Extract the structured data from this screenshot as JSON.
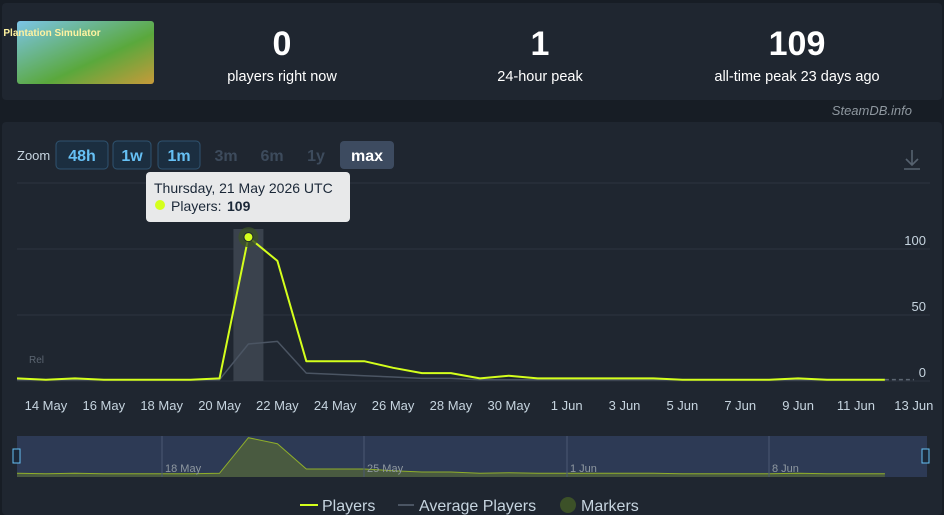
{
  "header": {
    "logo_text": "Plantation Simulator",
    "stats": [
      {
        "value": 0,
        "label": "players right now"
      },
      {
        "value": 1,
        "label": "24-hour peak"
      },
      {
        "value": 109,
        "label": "all-time peak 23 days ago"
      }
    ],
    "credit": "SteamDB.info"
  },
  "zoom": {
    "label": "Zoom",
    "buttons": [
      "48h",
      "1w",
      "1m",
      "3m",
      "6m",
      "1y",
      "max"
    ]
  },
  "tooltip": {
    "date": "Thursday, 21 May 2026 UTC",
    "label": "Players:"
  },
  "rel_label": "Rel",
  "navigator_ticks": [
    "18 May",
    "25 May",
    "1 Jun",
    "8 Jun"
  ],
  "chart_data": {
    "type": "line",
    "categories": [
      null,
      "14 May",
      null,
      "16 May",
      null,
      "18 May",
      null,
      "20 May",
      null,
      "22 May",
      null,
      "24 May",
      null,
      "26 May",
      null,
      "28 May",
      null,
      "30 May",
      null,
      "1 Jun",
      null,
      "3 Jun",
      null,
      "5 Jun",
      null,
      "7 Jun",
      null,
      "9 Jun",
      null,
      "11 Jun",
      null,
      "13 Jun"
    ],
    "series": [
      {
        "name": "Players",
        "color": "#d4ff1c",
        "values": [
          2,
          1,
          2,
          1,
          1,
          1,
          1,
          2,
          109,
          91,
          15,
          15,
          15,
          10,
          6,
          6,
          2,
          4,
          2,
          2,
          2,
          2,
          2,
          1,
          1,
          1,
          1,
          2,
          1,
          1,
          1,
          null
        ]
      },
      {
        "name": "Average Players",
        "color": "#4b5563",
        "values": [
          1,
          1,
          1,
          1,
          1,
          1,
          1,
          1,
          28,
          30,
          6,
          5,
          4,
          3,
          2,
          2,
          1,
          1,
          1,
          1,
          1,
          1,
          1,
          1,
          1,
          1,
          1,
          1,
          1,
          1,
          1,
          null
        ]
      }
    ],
    "markers": {
      "name": "Markers",
      "color": "#3c5128"
    },
    "ylim": [
      0,
      150
    ],
    "yticks": [
      0,
      50,
      100
    ],
    "grid": true
  }
}
